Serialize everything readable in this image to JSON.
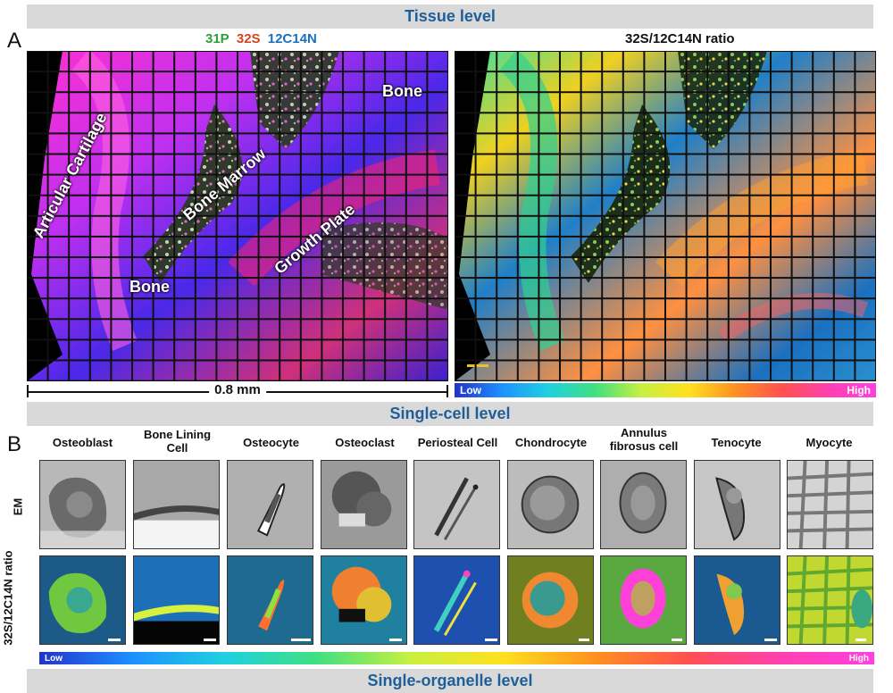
{
  "bands": {
    "tissue": "Tissue level",
    "single_cell": "Single-cell level",
    "single_organelle": "Single-organelle level"
  },
  "panels": {
    "a": "A",
    "b": "B"
  },
  "panel_a": {
    "left_title": {
      "p": "31P",
      "s": "32S",
      "cn": "12C14N"
    },
    "right_title": "32S/12C14N ratio",
    "labels": {
      "articular_cartilage": "Articular Cartilage",
      "bone_marrow": "Bone Marrow",
      "bone_top": "Bone",
      "growth_plate": "Growth Plate",
      "bone_bottom": "Bone"
    },
    "scale_bar": "0.8 mm",
    "colorbar": {
      "low": "Low",
      "high": "High"
    }
  },
  "panel_b": {
    "cells": [
      {
        "name": "Osteoblast"
      },
      {
        "name": "Bone Lining Cell"
      },
      {
        "name": "Osteocyte"
      },
      {
        "name": "Osteoclast"
      },
      {
        "name": "Periosteal Cell"
      },
      {
        "name": "Chondrocyte"
      },
      {
        "name": "Annulus fibrosus cell"
      },
      {
        "name": "Tenocyte"
      },
      {
        "name": "Myocyte"
      }
    ],
    "row_em": "EM",
    "row_ratio": "32S/12C14N ratio",
    "colorbar": {
      "low": "Low",
      "high": "High"
    }
  },
  "colors": {
    "band_text": "#1f5f99",
    "band_bg": "#d9d9d9",
    "p_green": "#2e9e3a",
    "s_red": "#d2451e",
    "cn_blue": "#1b6fbf"
  }
}
